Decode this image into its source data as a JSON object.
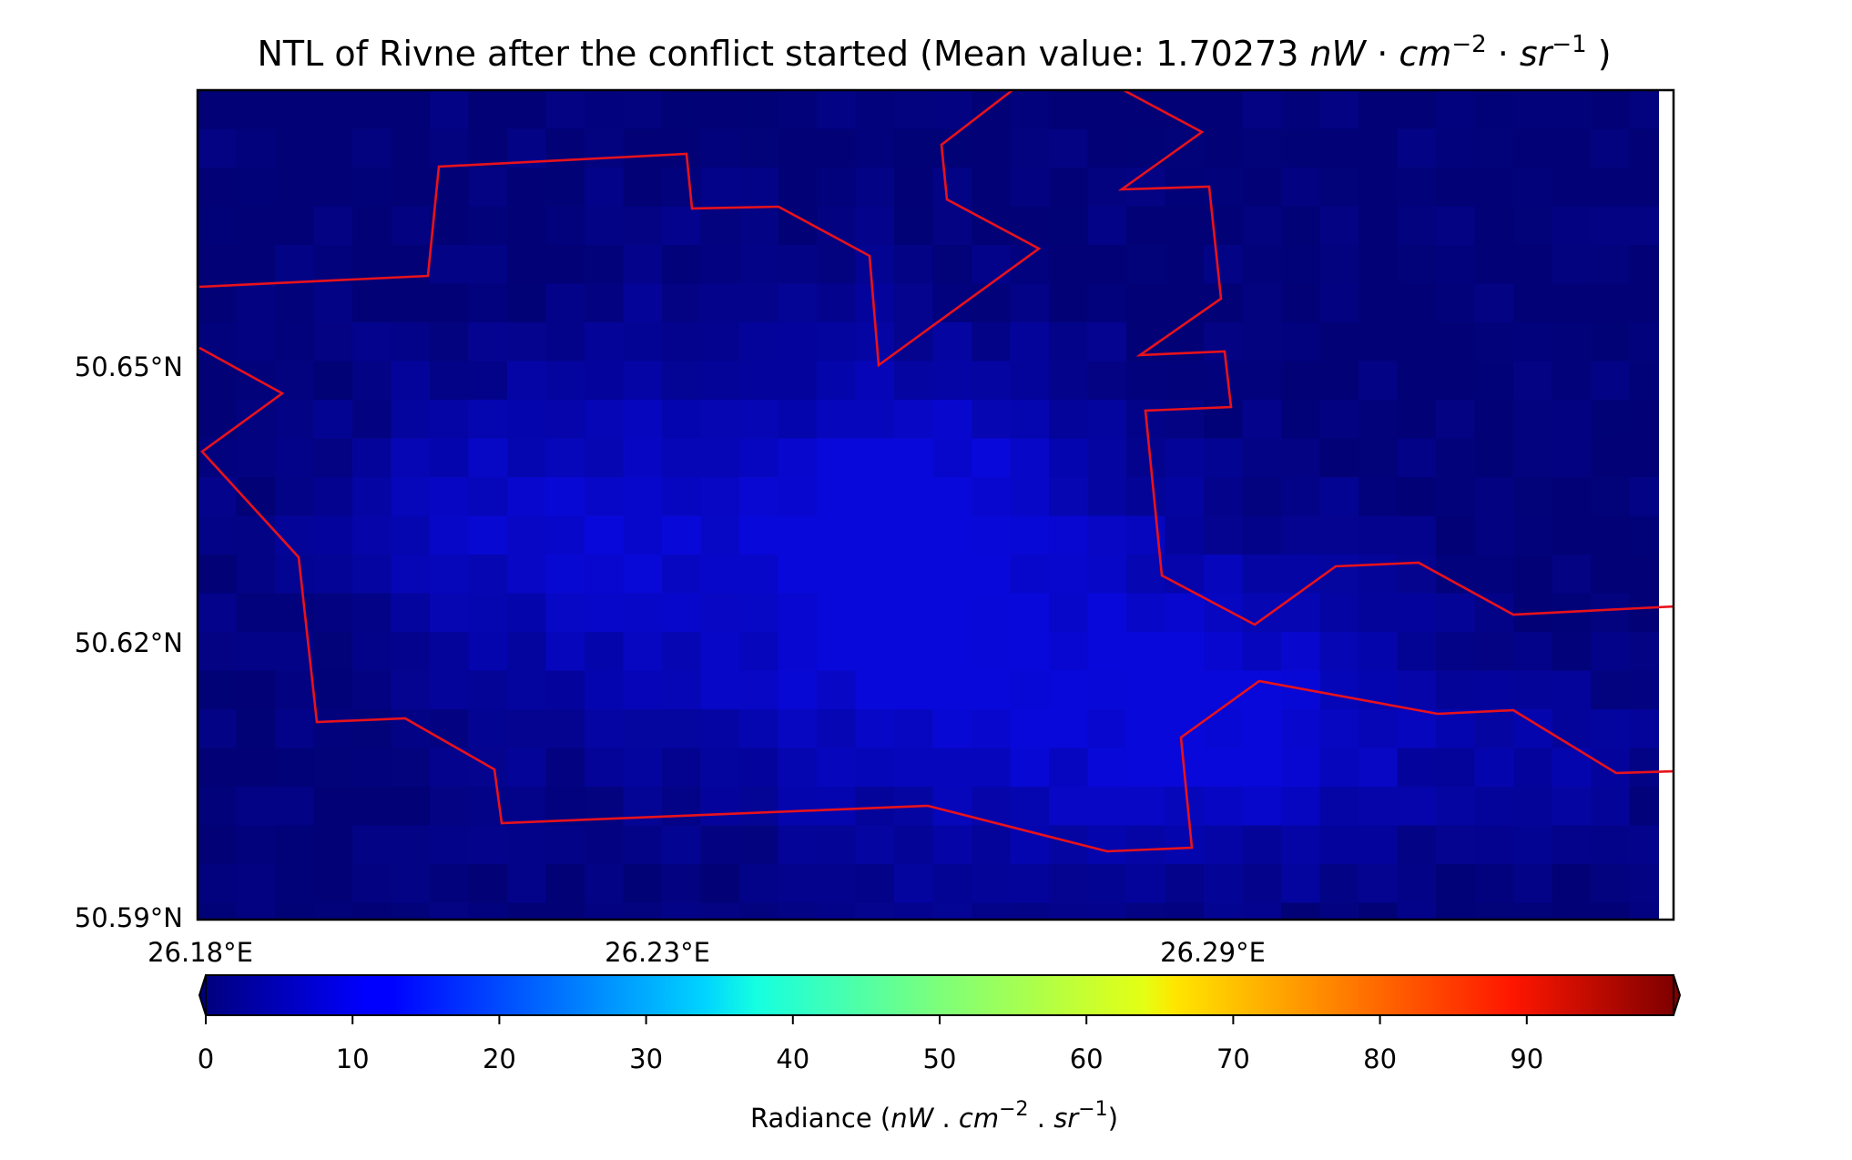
{
  "title": {
    "main": "NTL of Rivne after the conflict started (Mean value: 1.70273 ",
    "unit_nw": "nW",
    "dot1": " · ",
    "unit_cm": "cm",
    "exp_cm": "−2",
    "dot2": " · ",
    "unit_sr": "sr",
    "exp_sr": "−1",
    "close": " )"
  },
  "map": {
    "lat_ticks": [
      "50.65°N",
      "50.62°N",
      "50.59°N"
    ],
    "lon_ticks": [
      "26.18°E",
      "26.23°E",
      "26.29°E"
    ],
    "boundary_color": "#e8121b",
    "raster_colors": {
      "dark": "#020276",
      "mid": "#05058f",
      "bright": "#0a0acd"
    }
  },
  "colorbar": {
    "ticks": [
      "0",
      "10",
      "20",
      "30",
      "40",
      "50",
      "60",
      "70",
      "80",
      "90"
    ],
    "tick_values": [
      0,
      10,
      20,
      30,
      40,
      50,
      60,
      70,
      80,
      90
    ],
    "range": [
      0,
      100
    ],
    "label_prefix": "Radiance (",
    "label_nw": "nW",
    "label_dot1": " . ",
    "label_cm": "cm",
    "label_exp_cm": "−2",
    "label_dot2": " . ",
    "label_sr": "sr",
    "label_exp_sr": "−1",
    "label_suffix": ")",
    "colormap": "jet",
    "extend": "both"
  }
}
